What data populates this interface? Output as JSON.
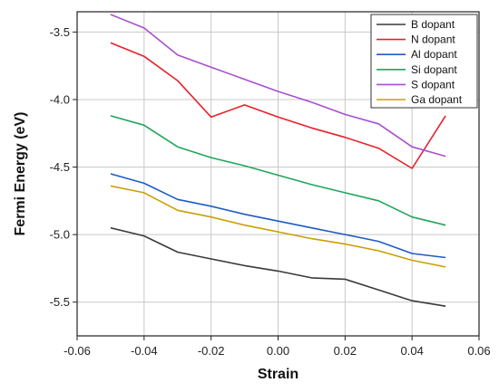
{
  "chart_data": {
    "type": "line",
    "xlabel": "Strain",
    "ylabel": "Fermi Energy (eV)",
    "xlim": [
      -0.06,
      0.06
    ],
    "ylim": [
      -5.75,
      -3.35
    ],
    "xticks": [
      -0.06,
      -0.04,
      -0.02,
      0.0,
      0.02,
      0.04,
      0.06
    ],
    "xtick_labels": [
      "-0.06",
      "-0.04",
      "-0.02",
      "0.00",
      "0.02",
      "0.04",
      "0.06"
    ],
    "yticks": [
      -3.5,
      -4.0,
      -4.5,
      -5.0,
      -5.5
    ],
    "ytick_labels": [
      "-3.5",
      "-4.0",
      "-4.5",
      "-5.0",
      "-5.5"
    ],
    "grid": true,
    "legend_position": "top-right",
    "x": [
      -0.05,
      -0.04,
      -0.03,
      -0.02,
      -0.01,
      0.0,
      0.01,
      0.02,
      0.03,
      0.04,
      0.05
    ],
    "series": [
      {
        "name": "B dopant",
        "color": "#3a3a3a",
        "values": [
          -4.95,
          -5.01,
          -5.13,
          -5.18,
          -5.23,
          -5.27,
          -5.32,
          -5.33,
          -5.41,
          -5.49,
          -5.53
        ]
      },
      {
        "name": "N dopant",
        "color": "#e8202a",
        "values": [
          -3.58,
          -3.68,
          -3.86,
          -4.13,
          -4.04,
          -4.13,
          -4.21,
          -4.28,
          -4.36,
          -4.51,
          -4.12
        ]
      },
      {
        "name": "Al dopant",
        "color": "#1f5bc4",
        "values": [
          -4.55,
          -4.62,
          -4.74,
          -4.79,
          -4.85,
          -4.9,
          -4.95,
          -5.0,
          -5.05,
          -5.14,
          -5.17
        ]
      },
      {
        "name": "Si dopant",
        "color": "#1fa65a",
        "values": [
          -4.12,
          -4.19,
          -4.35,
          -4.43,
          -4.49,
          -4.56,
          -4.63,
          -4.69,
          -4.75,
          -4.87,
          -4.93
        ]
      },
      {
        "name": "S dopant",
        "color": "#a84fd0",
        "values": [
          -3.37,
          -3.47,
          -3.67,
          -3.76,
          -3.85,
          -3.94,
          -4.02,
          -4.11,
          -4.18,
          -4.35,
          -4.42
        ]
      },
      {
        "name": "Ga dopant",
        "color": "#c9a000",
        "values": [
          -4.64,
          -4.69,
          -4.82,
          -4.87,
          -4.93,
          -4.98,
          -5.03,
          -5.07,
          -5.12,
          -5.19,
          -5.24
        ]
      }
    ]
  }
}
